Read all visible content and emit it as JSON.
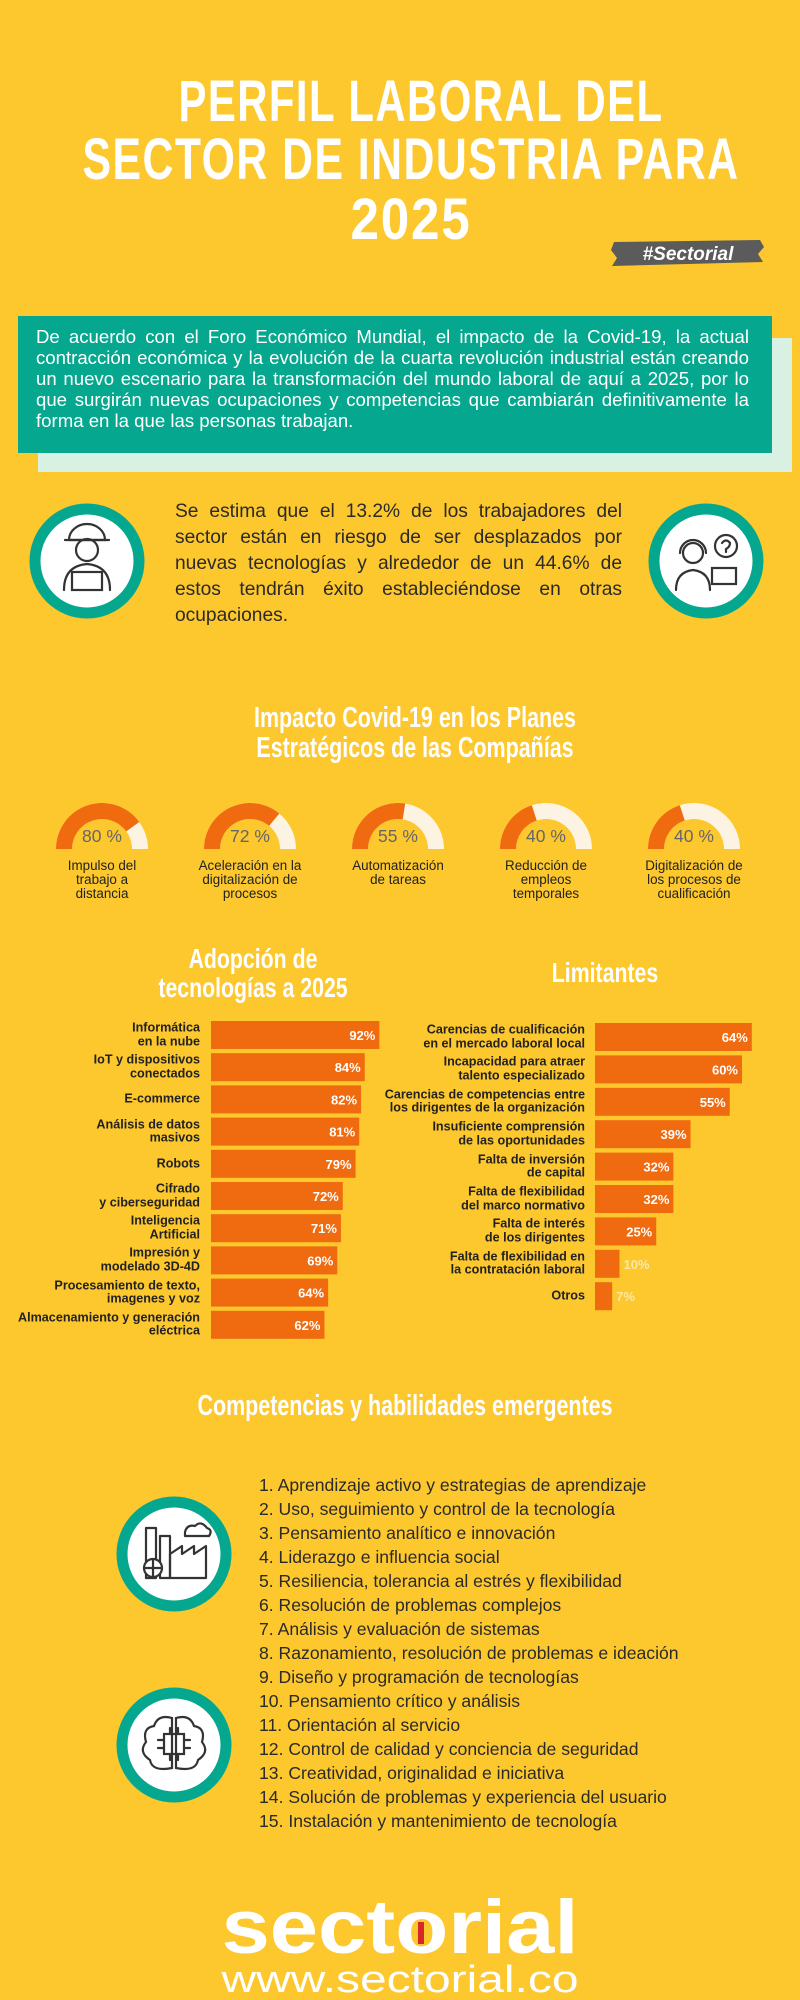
{
  "header": {
    "title_lines": [
      "PERFIL LABORAL DEL",
      "SECTOR DE INDUSTRIA PARA",
      "2025"
    ],
    "tag": "#Sectorial"
  },
  "intro": "De acuerdo con el Foro Económico Mundial, el impacto de la Covid-19, la actual contracción económica y la evolución de la cuarta revolución industrial están creando un nuevo escenario para la transformación del mundo laboral de aquí a 2025, por lo que surgirán nuevas ocupaciones y competencias que cambiarán definitivamente la forma en la que las personas trabajan.",
  "estimate": "Se estima que el 13.2% de los trabajadores del sector están en riesgo de ser desplazados por nuevas tecnologías y alrededor de un 44.6% de estos tendrán éxito estableciéndose en otras ocupaciones.",
  "chart_data": [
    {
      "type": "gauge",
      "title": "Impacto Covid-19 en los Planes Estratégicos de las Compañías",
      "categories": [
        "Impulso del\ntrabajo a\ndistancia",
        "Aceleración en la\ndigitalización de\nprocesos",
        "Automatización\nde tareas",
        "Reducción de\nempleos\ntemporales",
        "Digitalización de\nlos procesos de\ncualificación"
      ],
      "values": [
        80,
        72,
        55,
        40,
        40
      ],
      "value_labels": [
        "80 %",
        "72 %",
        "55 %",
        "40 %",
        "40 %"
      ],
      "ylim": [
        0,
        100
      ],
      "color": "#f06a10",
      "track_color": "#fdf3e2"
    },
    {
      "type": "barh",
      "title": "Adopción de\ntecnologías a 2025",
      "categories": [
        "Informática\nen la nube",
        "IoT y dispositivos\nconectados",
        "E-commerce",
        "Análisis de datos\nmasivos",
        "Robots",
        "Cifrado\ny ciberseguridad",
        "Inteligencia\nArtificial",
        "Impresión y\nmodelado 3D-4D",
        "Procesamiento de texto,\nimagenes y voz",
        "Almacenamiento y generación\neléctrica"
      ],
      "values": [
        92,
        84,
        82,
        81,
        79,
        72,
        71,
        69,
        64,
        62
      ],
      "value_labels": [
        "92%",
        "84%",
        "82%",
        "81%",
        "79%",
        "72%",
        "71%",
        "69%",
        "64%",
        "62%"
      ],
      "xlim": [
        0,
        100
      ],
      "color": "#f06a10"
    },
    {
      "type": "barh",
      "title": "Limitantes",
      "categories": [
        "Carencias de cualificación\nen el mercado laboral local",
        "Incapacidad para atraer\ntalento especializado",
        "Carencias de competencias entre\nlos dirigentes de la organización",
        "Insuficiente comprensión\nde las oportunidades",
        "Falta de inversión\nde capital",
        "Falta de flexibilidad\ndel marco normativo",
        "Falta de interés\nde los dirigentes",
        "Falta de flexibilidad en\nla contratación laboral",
        "Otros"
      ],
      "values": [
        64,
        60,
        55,
        39,
        32,
        32,
        25,
        10,
        7
      ],
      "value_labels": [
        "64%",
        "60%",
        "55%",
        "39%",
        "32%",
        "32%",
        "25%",
        "10%",
        "7%"
      ],
      "xlim": [
        0,
        100
      ],
      "color": "#f06a10"
    }
  ],
  "competencias": {
    "title": "Competencias y habilidades emergentes",
    "items": [
      "1. Aprendizaje activo y estrategias de aprendizaje",
      "2. Uso, seguimiento y control de la tecnología",
      "3. Pensamiento analítico e innovación",
      "4. Liderazgo e influencia social",
      "5. Resiliencia, tolerancia al estrés y flexibilidad",
      "6. Resolución de problemas complejos",
      "7. Análisis y evaluación de sistemas",
      "8. Razonamiento, resolución de problemas e ideación",
      "9. Diseño y programación de tecnologías",
      "10. Pensamiento crítico y análisis",
      "11. Orientación al servicio",
      "12. Control de calidad y conciencia de seguridad",
      "13. Creatividad, originalidad e iniciativa",
      "14. Solución de problemas y experiencia del usuario",
      "15. Instalación y mantenimiento de tecnología"
    ]
  },
  "footer": {
    "logo": "sectorial",
    "url": "www.sectorial.co"
  }
}
